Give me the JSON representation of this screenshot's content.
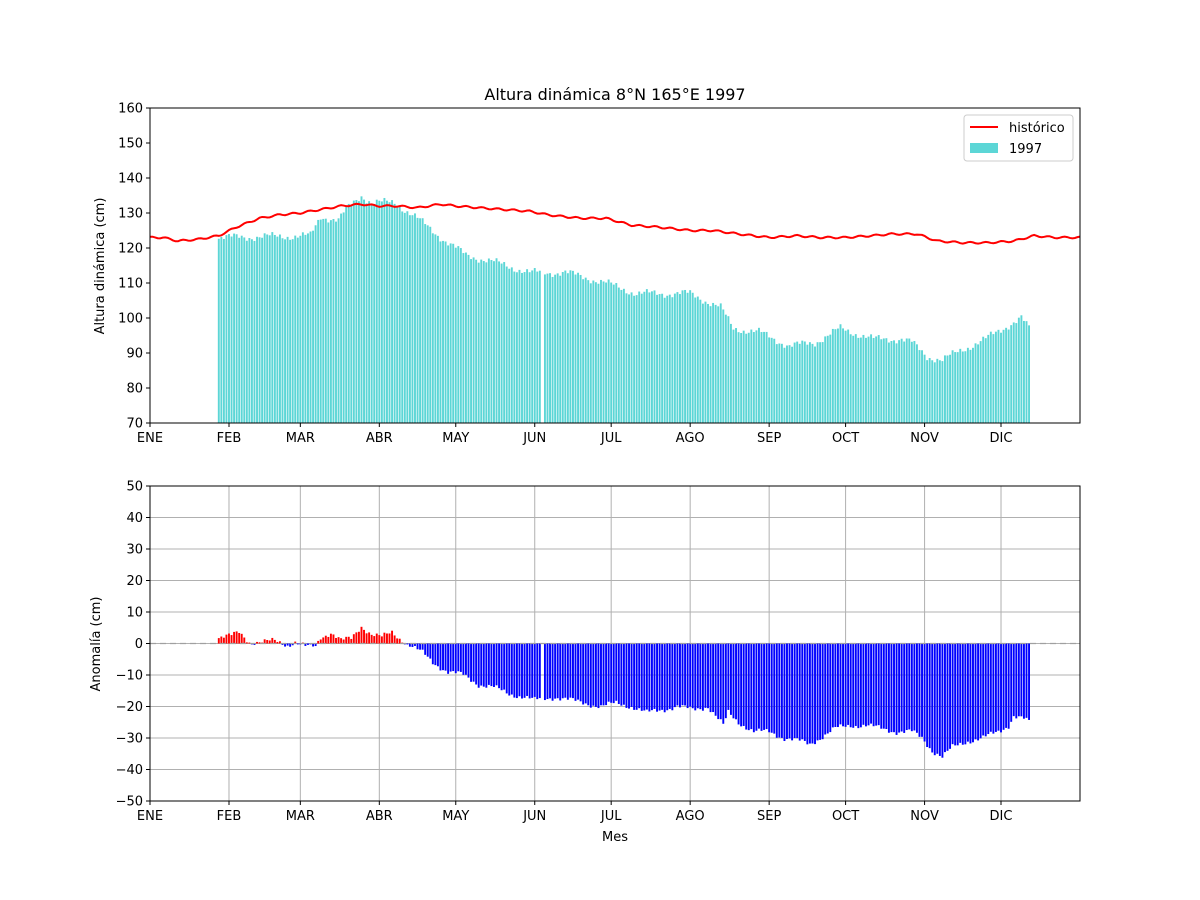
{
  "chart_data": [
    {
      "type": "bar",
      "title": "Altura dinámica 8°N 165°E 1997",
      "xlabel": "",
      "ylabel": "Altura dinámica (cm)",
      "ylim": [
        70,
        160
      ],
      "yticks": [
        "70",
        "80",
        "90",
        "100",
        "110",
        "120",
        "130",
        "140",
        "150",
        "160"
      ],
      "xlim": [
        1,
        366
      ],
      "month_ticks": [
        "ENE",
        "FEB",
        "MAR",
        "ABR",
        "MAY",
        "JUN",
        "JUL",
        "AGO",
        "SEP",
        "OCT",
        "NOV",
        "DIC"
      ],
      "month_start_days": [
        1,
        32,
        60,
        91,
        121,
        152,
        182,
        213,
        244,
        274,
        305,
        335
      ],
      "grid": false,
      "legend_position": "top-right",
      "legend": [
        {
          "label": "histórico",
          "kind": "line",
          "color": "#ff0000"
        },
        {
          "label": "1997",
          "kind": "bar",
          "color": "#5cd6d6"
        }
      ],
      "series": [
        {
          "name": "1997",
          "kind": "bar",
          "color": "#5cd6d6",
          "x": [
            28,
            64,
            68,
            75,
            78,
            84,
            88,
            97,
            105,
            117,
            125,
            136,
            150,
            155,
            164,
            175,
            180,
            192,
            200,
            213,
            225,
            230,
            240,
            252,
            262,
            272,
            285,
            296,
            300,
            306,
            312,
            320,
            329,
            338,
            343,
            346
          ],
          "values": [
            123,
            123.5,
            129,
            128,
            131,
            135,
            133,
            133,
            129,
            122,
            118,
            116,
            113,
            null,
            113,
            111,
            110,
            107,
            107,
            107,
            103,
            97,
            96,
            92,
            93,
            97,
            94,
            94,
            93,
            89,
            88,
            91,
            94,
            98,
            100,
            97
          ]
        },
        {
          "name": "histórico",
          "kind": "line",
          "color": "#ff0000",
          "x": [
            1,
            6,
            12,
            20,
            28,
            35,
            44,
            52,
            60,
            68,
            76,
            84,
            91,
            98,
            106,
            115,
            121,
            130,
            140,
            150,
            157,
            163,
            170,
            180,
            190,
            200,
            213,
            222,
            232,
            244,
            255,
            264,
            274,
            284,
            292,
            302,
            310,
            320,
            330,
            340,
            348,
            356,
            366
          ],
          "values": [
            123,
            123,
            122,
            122.5,
            123.5,
            126,
            128.5,
            129.5,
            130,
            131,
            132,
            132.5,
            132,
            132,
            131.5,
            132.5,
            132,
            131.5,
            131,
            130.5,
            129.5,
            129,
            128.5,
            128.5,
            126.5,
            126,
            125,
            125,
            124,
            123,
            123.5,
            123,
            123,
            123.5,
            124,
            124,
            122,
            121.5,
            121.5,
            122,
            123.5,
            123,
            123
          ]
        }
      ]
    },
    {
      "type": "bar",
      "title": "",
      "xlabel": "Mes",
      "ylabel": "Anomalía (cm)",
      "ylim": [
        -50,
        50
      ],
      "yticks": [
        "−50",
        "−40",
        "−30",
        "−20",
        "−10",
        "0",
        "10",
        "20",
        "30",
        "40",
        "50"
      ],
      "xlim": [
        1,
        366
      ],
      "month_ticks": [
        "ENE",
        "FEB",
        "MAR",
        "ABR",
        "MAY",
        "JUN",
        "JUL",
        "AGO",
        "SEP",
        "OCT",
        "NOV",
        "DIC"
      ],
      "month_start_days": [
        1,
        32,
        60,
        91,
        121,
        152,
        182,
        213,
        244,
        274,
        305,
        335
      ],
      "grid": true,
      "zero_line": "dashed",
      "positive_color": "#ff0000",
      "negative_color": "#0000ff",
      "series": [
        {
          "name": "",
          "kind": "bar",
          "x": [
            28,
            33,
            36,
            40,
            45,
            50,
            55,
            58,
            62,
            66,
            68,
            72,
            76,
            80,
            84,
            88,
            92,
            96,
            100,
            104,
            108,
            112,
            118,
            124,
            130,
            136,
            142,
            148,
            152,
            155,
            160,
            166,
            172,
            178,
            184,
            190,
            196,
            202,
            208,
            214,
            220,
            226,
            228,
            232,
            238,
            244,
            250,
            256,
            260,
            264,
            270,
            276,
            282,
            288,
            294,
            300,
            304,
            308,
            312,
            316,
            322,
            328,
            334,
            338,
            340,
            344,
            346
          ],
          "values": [
            2,
            2.5,
            3.5,
            0.5,
            0.5,
            0.8,
            -0.5,
            0.5,
            -1,
            -1,
            2,
            3.5,
            1,
            1.5,
            5.5,
            3,
            2,
            3.5,
            1,
            -1,
            -3,
            -6,
            -9,
            -10,
            -13,
            -14,
            -16,
            -17,
            -18,
            null,
            -17,
            -18,
            -19,
            -20,
            -19,
            -20,
            -22,
            -21,
            -20,
            -21,
            -20,
            -26,
            -22,
            -25,
            -28,
            -28,
            -30,
            -31,
            -32,
            -30,
            -27,
            -26,
            -26,
            -27,
            -28,
            -28,
            -30,
            -34,
            -36,
            -33,
            -31,
            -30,
            -28,
            -26,
            -23,
            -24,
            -25
          ]
        }
      ]
    }
  ]
}
